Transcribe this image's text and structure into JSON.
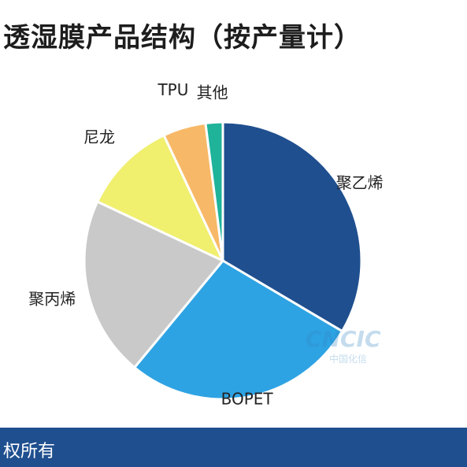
{
  "chart_data": {
    "type": "pie",
    "title": "透湿膜产品结构（按产量计）",
    "categories": [
      "聚乙烯",
      "BOPET",
      "聚丙烯",
      "尼龙",
      "TPU",
      "其他"
    ],
    "values": [
      33.5,
      27.5,
      21,
      11,
      5,
      2
    ],
    "colors": [
      "#1f4f8f",
      "#2ea3e3",
      "#c9c9c9",
      "#f0ef6e",
      "#f7b967",
      "#1fb39a"
    ]
  },
  "watermark": {
    "text": "CNCIC",
    "subtext": "中国化信"
  },
  "footer": {
    "text": "权所有"
  }
}
